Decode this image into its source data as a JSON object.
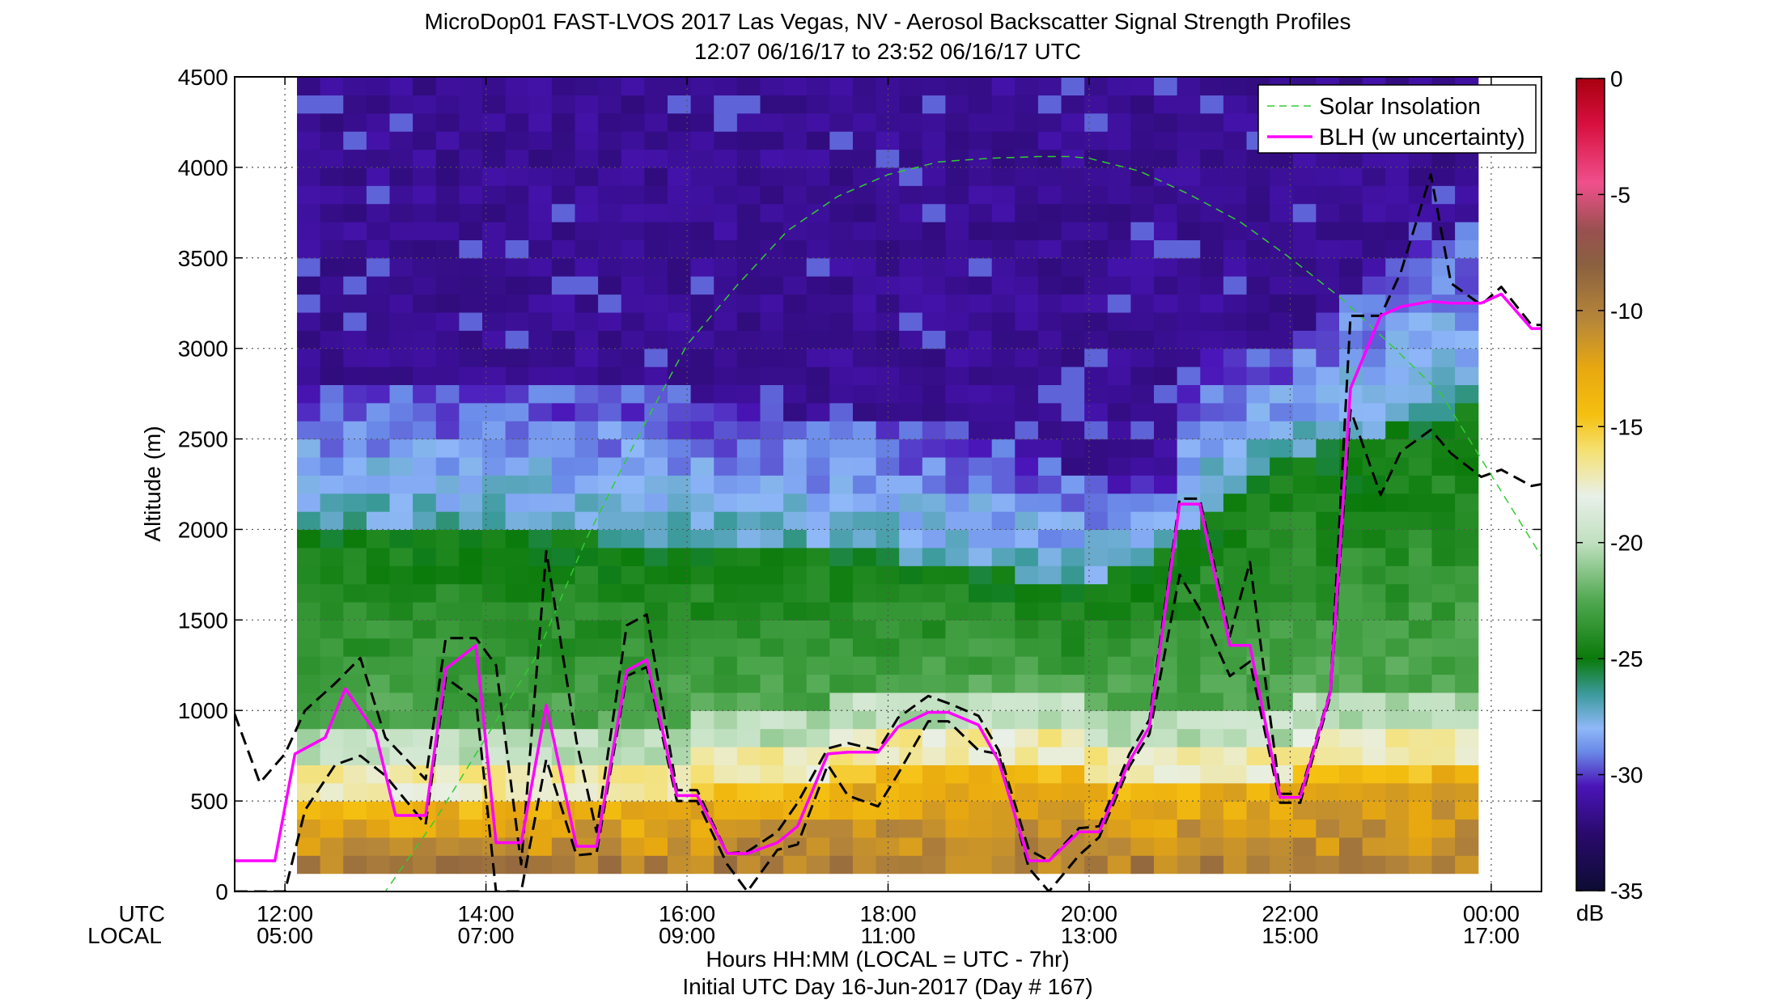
{
  "chart_data": {
    "type": "heatmap",
    "title": "MicroDop01 FAST-LVOS 2017 Las Vegas, NV - Aerosol Backscatter Signal Strength Profiles",
    "subtitle": "12:07 06/16/17 to 23:52 06/16/17  UTC",
    "xlabel": "Hours HH:MM  (LOCAL = UTC - 7hr)",
    "xlabel2": "Initial UTC Day 16-Jun-2017 (Day # 167)",
    "ylabel": "Altitude (m)",
    "xlim_utc_hours": [
      11.5,
      24.5
    ],
    "ylim": [
      0,
      4500
    ],
    "data_range_utc_hours": [
      12.12,
      23.87
    ],
    "grid": true,
    "x_row_titles": {
      "utc": "UTC",
      "local": "LOCAL"
    },
    "x_ticks_utc": [
      "12:00",
      "14:00",
      "16:00",
      "18:00",
      "20:00",
      "22:00",
      "00:00"
    ],
    "x_ticks_local": [
      "05:00",
      "07:00",
      "09:00",
      "11:00",
      "13:00",
      "15:00",
      "17:00"
    ],
    "x_tick_positions_utc_hours": [
      12,
      14,
      16,
      18,
      20,
      22,
      24
    ],
    "y_ticks": [
      "0",
      "500",
      "1000",
      "1500",
      "2000",
      "2500",
      "3000",
      "3500",
      "4000",
      "4500"
    ],
    "y_tick_values": [
      0,
      500,
      1000,
      1500,
      2000,
      2500,
      3000,
      3500,
      4000,
      4500
    ],
    "colorbar": {
      "label": "dB",
      "range": [
        -35,
        0
      ],
      "ticks": [
        "0",
        "-5",
        "-10",
        "-15",
        "-20",
        "-25",
        "-30",
        "-35"
      ],
      "tick_values": [
        0,
        -5,
        -10,
        -15,
        -20,
        -25,
        -30,
        -35
      ],
      "colors": [
        "#0d0c33",
        "#2a0a6e",
        "#4a14b8",
        "#6a8ae8",
        "#8fb8f8",
        "#3a9a9a",
        "#0a7a0a",
        "#50a850",
        "#c0e0c0",
        "#e8f0e8",
        "#f5e070",
        "#f5c010",
        "#e8a810",
        "#b88838",
        "#8a6040",
        "#9a5050",
        "#f0508c",
        "#d81040",
        "#a80010"
      ],
      "color_stops": [
        -35,
        -32.5,
        -30.5,
        -29,
        -28,
        -26.5,
        -25,
        -22.5,
        -20,
        -18,
        -16,
        -14.5,
        -12.5,
        -10.5,
        -8,
        -6.5,
        -4.5,
        -2,
        0
      ]
    },
    "heatmap_grid": {
      "x_start_utc_hours": 12.12,
      "x_end_utc_hours": 23.87,
      "cell_height_m": 100
    },
    "profile_model": {
      "bands": [
        {
          "name": "surface_strong",
          "top_m": 150
        },
        {
          "name": "aerosol_layer_top",
          "description_dB": -13
        },
        {
          "name": "mixed_green",
          "description_dB": -24
        },
        {
          "name": "residual_blue",
          "description_dB": -29
        },
        {
          "name": "free_troposphere",
          "description_dB": -31.5
        }
      ],
      "layer_top_m": [
        [
          12.1,
          700
        ],
        [
          13.0,
          650
        ],
        [
          14.0,
          650
        ],
        [
          15.0,
          650
        ],
        [
          16.0,
          700
        ],
        [
          17.0,
          750
        ],
        [
          18.0,
          850
        ],
        [
          19.0,
          850
        ],
        [
          20.0,
          800
        ],
        [
          21.0,
          800
        ],
        [
          22.0,
          800
        ],
        [
          23.0,
          850
        ],
        [
          23.9,
          900
        ]
      ],
      "green_top_m": [
        [
          12.1,
          2050
        ],
        [
          13.0,
          2050
        ],
        [
          14.0,
          2000
        ],
        [
          15.0,
          1950
        ],
        [
          16.0,
          1950
        ],
        [
          17.0,
          1900
        ],
        [
          18.0,
          1850
        ],
        [
          19.0,
          1800
        ],
        [
          20.0,
          1650
        ],
        [
          21.0,
          2000
        ],
        [
          21.5,
          2250
        ],
        [
          22.0,
          2400
        ],
        [
          23.0,
          2550
        ],
        [
          23.9,
          2700
        ]
      ],
      "blue_top_m": [
        [
          12.1,
          2800
        ],
        [
          13.0,
          2800
        ],
        [
          14.0,
          2800
        ],
        [
          15.0,
          2800
        ],
        [
          16.0,
          2750
        ],
        [
          17.0,
          2650
        ],
        [
          18.0,
          2600
        ],
        [
          19.0,
          2500
        ],
        [
          20.0,
          2300
        ],
        [
          20.8,
          2250
        ],
        [
          21.0,
          2950
        ],
        [
          22.0,
          3000
        ],
        [
          22.5,
          3300
        ],
        [
          23.0,
          3500
        ],
        [
          23.9,
          3700
        ]
      ]
    },
    "series": [
      {
        "name": "BLH (w uncertainty)",
        "style": "solid",
        "color": "#ff00ff",
        "x": [
          11.5,
          11.9,
          12.1,
          12.4,
          12.6,
          12.9,
          13.1,
          13.4,
          13.6,
          13.9,
          14.1,
          14.35,
          14.6,
          14.9,
          15.1,
          15.4,
          15.6,
          15.9,
          16.1,
          16.4,
          16.6,
          16.9,
          17.1,
          17.4,
          17.6,
          17.9,
          18.1,
          18.4,
          18.6,
          18.9,
          19.1,
          19.4,
          19.6,
          19.9,
          20.1,
          20.4,
          20.6,
          20.9,
          21.1,
          21.4,
          21.6,
          21.9,
          22.1,
          22.4,
          22.6,
          22.9,
          23.1,
          23.4,
          23.6,
          23.9,
          24.1,
          24.4,
          24.5
        ],
        "y": [
          170,
          170,
          760,
          850,
          1120,
          880,
          420,
          420,
          1230,
          1360,
          270,
          270,
          1030,
          250,
          250,
          1220,
          1280,
          530,
          530,
          210,
          210,
          270,
          360,
          760,
          770,
          770,
          910,
          990,
          990,
          920,
          720,
          170,
          170,
          330,
          330,
          720,
          910,
          2140,
          2140,
          1360,
          1360,
          520,
          520,
          1100,
          2780,
          3180,
          3230,
          3260,
          3250,
          3250,
          3300,
          3110,
          3110
        ]
      },
      {
        "name": "Upper uncertainty",
        "style": "dashed",
        "color": "#000000",
        "x": [
          11.5,
          11.75,
          12.0,
          12.2,
          12.5,
          12.75,
          13.0,
          13.4,
          13.6,
          13.9,
          14.1,
          14.35,
          14.6,
          14.9,
          15.1,
          15.4,
          15.6,
          15.9,
          16.1,
          16.4,
          16.6,
          16.9,
          17.1,
          17.4,
          17.6,
          17.9,
          18.1,
          18.4,
          18.6,
          18.9,
          19.1,
          19.4,
          19.6,
          19.9,
          20.1,
          20.4,
          20.6,
          20.9,
          21.1,
          21.4,
          21.6,
          21.9,
          22.1,
          22.4,
          22.6,
          22.9,
          23.1,
          23.4,
          23.6,
          23.9,
          24.1,
          24.4,
          24.5
        ],
        "y": [
          980,
          600,
          760,
          1000,
          1150,
          1290,
          850,
          620,
          1400,
          1400,
          1250,
          150,
          1880,
          830,
          330,
          1470,
          1530,
          560,
          560,
          210,
          220,
          330,
          490,
          790,
          820,
          780,
          960,
          1080,
          1040,
          970,
          780,
          230,
          170,
          350,
          360,
          760,
          950,
          2170,
          2170,
          1410,
          1820,
          540,
          540,
          1110,
          3180,
          3180,
          3420,
          3960,
          3360,
          3240,
          3340,
          3130,
          3130
        ]
      },
      {
        "name": "Lower uncertainty",
        "style": "dashed",
        "color": "#000000",
        "x": [
          11.5,
          11.75,
          12.0,
          12.2,
          12.5,
          12.75,
          13.0,
          13.4,
          13.6,
          13.9,
          14.1,
          14.35,
          14.6,
          14.9,
          15.1,
          15.4,
          15.6,
          15.9,
          16.1,
          16.4,
          16.6,
          16.9,
          17.1,
          17.4,
          17.6,
          17.9,
          18.1,
          18.4,
          18.6,
          18.9,
          19.1,
          19.4,
          19.6,
          19.9,
          20.1,
          20.4,
          20.6,
          20.9,
          21.1,
          21.4,
          21.6,
          21.9,
          22.1,
          22.4,
          22.6,
          22.9,
          23.1,
          23.4,
          23.6,
          23.9,
          24.1,
          24.4,
          24.5
        ],
        "y": [
          0,
          0,
          0,
          450,
          700,
          750,
          640,
          370,
          1180,
          1060,
          0,
          0,
          730,
          200,
          210,
          1190,
          1240,
          500,
          500,
          150,
          0,
          230,
          260,
          700,
          530,
          470,
          650,
          940,
          940,
          780,
          760,
          130,
          0,
          200,
          300,
          690,
          870,
          1750,
          1560,
          1190,
          1270,
          490,
          490,
          1080,
          2660,
          2190,
          2430,
          2550,
          2420,
          2290,
          2330,
          2240,
          2250
        ]
      },
      {
        "name": "Solar Insolation",
        "style": "dashed",
        "color": "#33cc33",
        "x": [
          12.0,
          12.5,
          13.0,
          13.5,
          14.0,
          14.5,
          15.0,
          15.5,
          16.0,
          16.5,
          17.0,
          17.5,
          18.0,
          18.5,
          19.0,
          19.5,
          19.8,
          20.0,
          20.5,
          21.0,
          21.5,
          22.0,
          22.5,
          23.0,
          23.5,
          24.0,
          24.5
        ],
        "y": [
          0,
          0,
          0,
          400,
          850,
          1300,
          1950,
          2500,
          3020,
          3350,
          3650,
          3840,
          3960,
          4030,
          4050,
          4060,
          4060,
          4050,
          3980,
          3850,
          3700,
          3500,
          3280,
          3020,
          2750,
          2300,
          1850
        ]
      }
    ],
    "legend": {
      "placement": "top-right",
      "entries": [
        "Solar Insolation",
        "BLH (w uncertainty)"
      ]
    }
  }
}
